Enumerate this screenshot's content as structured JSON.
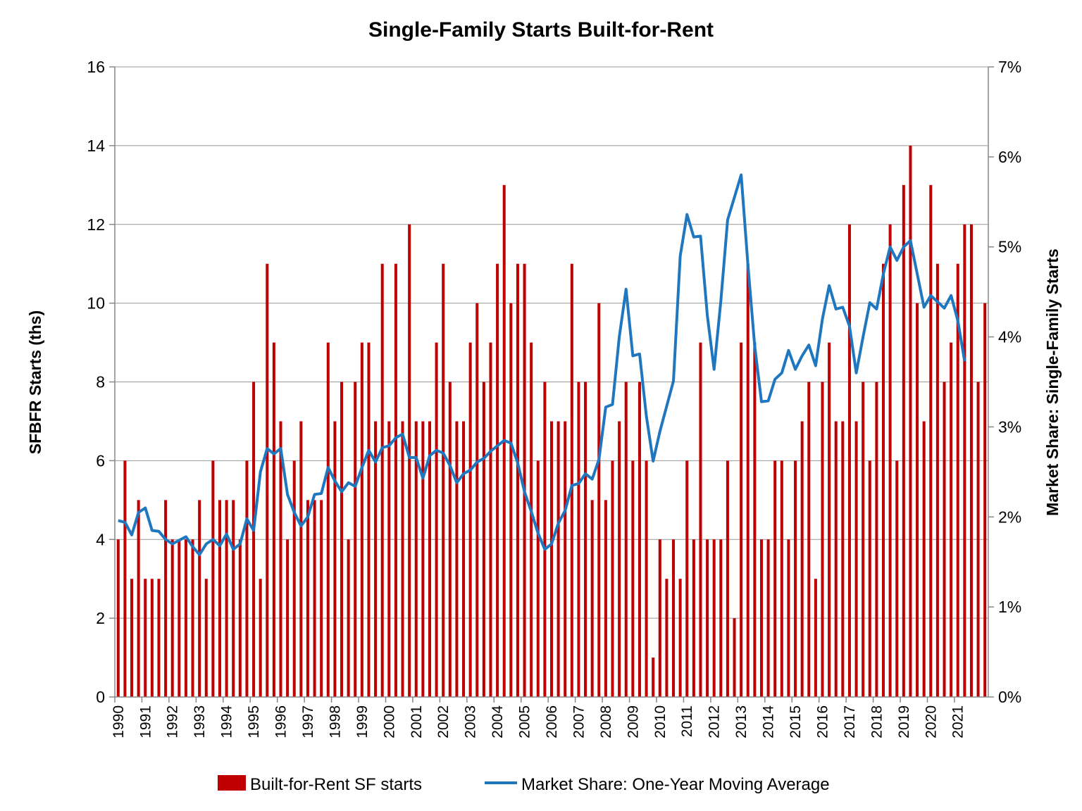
{
  "chart_data": {
    "type": "bar+line",
    "title": "Single-Family Starts Built-for-Rent",
    "ylabel": "SFBFR Starts (ths)",
    "y2label": "Market Share: Single-Family Starts",
    "ylim": [
      0,
      16
    ],
    "y2lim": [
      0,
      7
    ],
    "yticks": [
      "0",
      "2",
      "4",
      "6",
      "8",
      "10",
      "12",
      "14",
      "16"
    ],
    "y2ticks": [
      "0%",
      "1%",
      "2%",
      "3%",
      "4%",
      "5%",
      "6%",
      "7%"
    ],
    "x_start_year": 1990,
    "x_labels": [
      "1990",
      "1991",
      "1992",
      "1993",
      "1994",
      "1995",
      "1996",
      "1997",
      "1998",
      "1999",
      "2000",
      "2001",
      "2002",
      "2003",
      "2004",
      "2005",
      "2006",
      "2007",
      "2008",
      "2009",
      "2010",
      "2011",
      "2012",
      "2013",
      "2014",
      "2015",
      "2016",
      "2017",
      "2018",
      "2019",
      "2020",
      "2021"
    ],
    "grid": true,
    "legend_position": "bottom",
    "colors": {
      "bars": "#c00000",
      "line": "#1f77bf",
      "grid": "#999999",
      "axis": "#888888"
    },
    "series": [
      {
        "name": "Built-for-Rent SF starts",
        "type": "bar",
        "axis": "left",
        "values": [
          4,
          6,
          3,
          5,
          3,
          3,
          3,
          5,
          4,
          4,
          4,
          4,
          5,
          3,
          6,
          5,
          5,
          5,
          4,
          6,
          8,
          3,
          11,
          9,
          7,
          4,
          6,
          7,
          5,
          5,
          5,
          9,
          7,
          8,
          4,
          8,
          9,
          9,
          7,
          11,
          7,
          11,
          7,
          12,
          7,
          7,
          7,
          9,
          11,
          8,
          7,
          7,
          9,
          10,
          8,
          9,
          11,
          13,
          10,
          11,
          11,
          9,
          6,
          8,
          7,
          7,
          7,
          11,
          8,
          8,
          5,
          10,
          5,
          6,
          7,
          8,
          6,
          8,
          6,
          1,
          4,
          3,
          4,
          3,
          6,
          4,
          9,
          4,
          4,
          4,
          6,
          2,
          9,
          11,
          9,
          4,
          4,
          6,
          6,
          4,
          6,
          7,
          8,
          3,
          8,
          9,
          7,
          7,
          12,
          7,
          8,
          6,
          8,
          11,
          12,
          6,
          13,
          14,
          10,
          7,
          13,
          11,
          8,
          9,
          11,
          12,
          12,
          8,
          10
        ]
      },
      {
        "name": "Market Share: One-Year Moving Average",
        "type": "line",
        "axis": "right",
        "values": [
          1.96,
          1.94,
          1.8,
          2.05,
          2.1,
          1.85,
          1.84,
          1.75,
          1.7,
          1.74,
          1.78,
          1.67,
          1.58,
          1.7,
          1.75,
          1.68,
          1.81,
          1.64,
          1.7,
          1.98,
          1.85,
          2.5,
          2.76,
          2.7,
          2.76,
          2.25,
          2.05,
          1.9,
          2.0,
          2.25,
          2.26,
          2.55,
          2.4,
          2.28,
          2.38,
          2.34,
          2.55,
          2.74,
          2.61,
          2.77,
          2.79,
          2.88,
          2.92,
          2.66,
          2.66,
          2.43,
          2.68,
          2.74,
          2.71,
          2.57,
          2.38,
          2.48,
          2.52,
          2.61,
          2.65,
          2.73,
          2.79,
          2.85,
          2.82,
          2.6,
          2.28,
          2.06,
          1.82,
          1.64,
          1.7,
          1.93,
          2.07,
          2.35,
          2.37,
          2.48,
          2.42,
          2.64,
          3.22,
          3.25,
          4.0,
          4.53,
          3.79,
          3.81,
          3.12,
          2.62,
          2.95,
          3.23,
          3.51,
          4.9,
          5.36,
          5.11,
          5.12,
          4.24,
          3.64,
          4.4,
          5.3,
          5.55,
          5.8,
          4.8,
          3.9,
          3.28,
          3.29,
          3.53,
          3.6,
          3.85,
          3.64,
          3.79,
          3.91,
          3.68,
          4.2,
          4.57,
          4.31,
          4.33,
          4.12,
          3.6,
          4.0,
          4.38,
          4.31,
          4.7,
          5.0,
          4.85,
          5.0,
          5.07,
          4.7,
          4.33,
          4.46,
          4.39,
          4.32,
          4.46,
          4.18,
          3.73
        ]
      }
    ]
  }
}
